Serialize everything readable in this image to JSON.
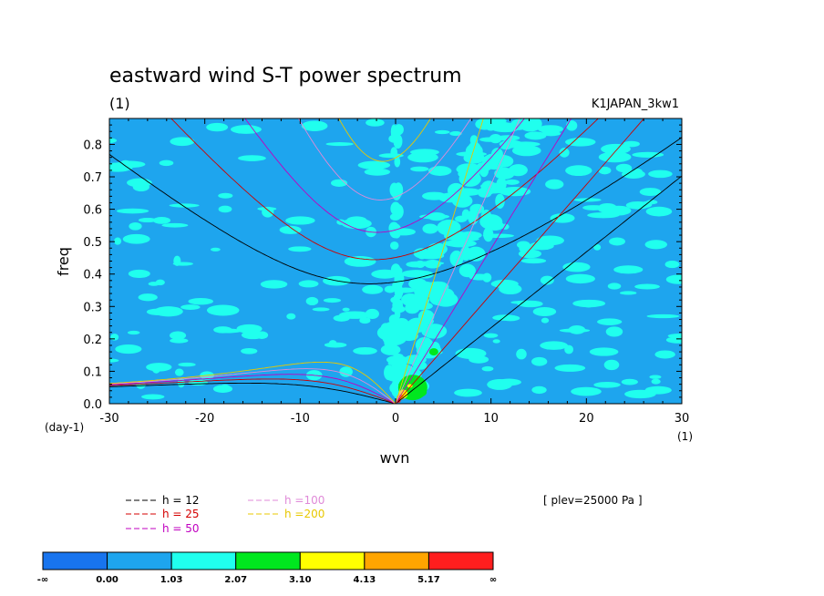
{
  "chart_data": {
    "type": "heatmap",
    "title": "eastward wind S-T power spectrum",
    "subtitle": "(1)",
    "run_label": "K1JAPAN_3kw1",
    "xlabel": "wvn",
    "ylabel": "freq",
    "xunit": "(1)",
    "yunit": "(day-1)",
    "xlim": [
      -30,
      30
    ],
    "ylim": [
      0.0,
      0.88
    ],
    "xticks": [
      "-30",
      "-20",
      "-10",
      "0",
      "10",
      "20",
      "30"
    ],
    "yticks": [
      "0.0",
      "0.1",
      "0.2",
      "0.3",
      "0.4",
      "0.5",
      "0.6",
      "0.7",
      "0.8"
    ],
    "level_note": "[ plev=25000 Pa ]",
    "colorbar": {
      "labels": [
        "-∞",
        "0.00",
        "1.03",
        "2.07",
        "3.10",
        "4.13",
        "5.17",
        "∞"
      ],
      "colors": [
        "#1874ee",
        "#1ea5ee",
        "#20ffee",
        "#00e71f",
        "#ffff00",
        "#ffa500",
        "#ff1e1e"
      ]
    },
    "background_level_color": "#1ea5ee",
    "series": [
      {
        "name": "h = 12",
        "h": 12,
        "color": "#000000",
        "legend_color": "#000000"
      },
      {
        "name": "h = 25",
        "h": 25,
        "color": "#cc0000",
        "legend_color": "#d40000"
      },
      {
        "name": "h = 50",
        "h": 50,
        "color": "#c000c0",
        "legend_color": "#c000c0"
      },
      {
        "name": "h =100",
        "h": 100,
        "color": "#e08ad8",
        "legend_color": "#e08ad8"
      },
      {
        "name": "h =200",
        "h": 200,
        "color": "#e8c800",
        "legend_color": "#e8c800"
      }
    ],
    "grid": false
  }
}
